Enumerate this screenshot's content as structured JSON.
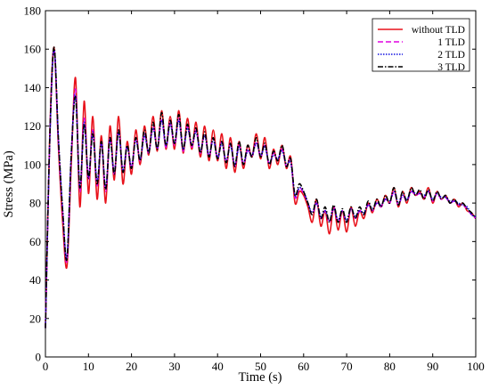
{
  "chart_data": {
    "type": "line",
    "xlabel": "Time (s)",
    "ylabel": "Stress (MPa)",
    "xlim": [
      0,
      100
    ],
    "ylim": [
      0,
      180
    ],
    "xticks": [
      0,
      10,
      20,
      30,
      40,
      50,
      60,
      70,
      80,
      90,
      100
    ],
    "yticks": [
      0,
      20,
      40,
      60,
      80,
      100,
      120,
      140,
      160,
      180
    ],
    "grid": false,
    "legend_position": "top-right",
    "series": [
      {
        "name": "without TLD",
        "color": "#e8121b",
        "dash": "solid",
        "x": [
          0,
          1,
          2,
          3,
          4,
          5,
          6,
          7,
          8,
          9,
          10,
          11,
          12,
          13,
          14,
          15,
          16,
          17,
          18,
          19,
          20,
          21,
          22,
          23,
          24,
          25,
          26,
          27,
          28,
          29,
          30,
          31,
          32,
          33,
          34,
          35,
          36,
          37,
          38,
          39,
          40,
          41,
          42,
          43,
          44,
          45,
          46,
          47,
          48,
          49,
          50,
          51,
          52,
          53,
          54,
          55,
          56,
          57,
          58,
          59,
          60,
          61,
          62,
          63,
          64,
          65,
          66,
          67,
          68,
          69,
          70,
          71,
          72,
          73,
          74,
          75,
          76,
          77,
          78,
          79,
          80,
          81,
          82,
          83,
          84,
          85,
          86,
          87,
          88,
          89,
          90,
          91,
          92,
          93,
          94,
          95,
          96,
          97,
          98,
          99,
          100
        ],
        "values": [
          15,
          115,
          161,
          110,
          70,
          47,
          100,
          145,
          78,
          133,
          85,
          125,
          82,
          115,
          80,
          120,
          92,
          125,
          90,
          112,
          95,
          118,
          100,
          120,
          105,
          125,
          107,
          128,
          108,
          125,
          108,
          128,
          106,
          124,
          108,
          122,
          104,
          120,
          102,
          118,
          102,
          116,
          98,
          114,
          96,
          112,
          98,
          110,
          104,
          116,
          103,
          114,
          98,
          108,
          100,
          110,
          98,
          104,
          80,
          86,
          84,
          78,
          70,
          82,
          68,
          76,
          64,
          78,
          66,
          76,
          65,
          78,
          68,
          76,
          72,
          80,
          75,
          82,
          78,
          84,
          80,
          88,
          78,
          86,
          80,
          88,
          84,
          86,
          82,
          88,
          80,
          86,
          82,
          84,
          80,
          82,
          78,
          80,
          76,
          75,
          72
        ]
      },
      {
        "name": "1 TLD",
        "color": "#e000e0",
        "dash": "dashed",
        "x": [
          0,
          1,
          2,
          3,
          4,
          5,
          6,
          7,
          8,
          9,
          10,
          11,
          12,
          13,
          14,
          15,
          16,
          17,
          18,
          19,
          20,
          21,
          22,
          23,
          24,
          25,
          26,
          27,
          28,
          29,
          30,
          31,
          32,
          33,
          34,
          35,
          36,
          37,
          38,
          39,
          40,
          41,
          42,
          43,
          44,
          45,
          46,
          47,
          48,
          49,
          50,
          51,
          52,
          53,
          54,
          55,
          56,
          57,
          58,
          59,
          60,
          61,
          62,
          63,
          64,
          65,
          66,
          67,
          68,
          69,
          70,
          71,
          72,
          73,
          74,
          75,
          76,
          77,
          78,
          79,
          80,
          81,
          82,
          83,
          84,
          85,
          86,
          87,
          88,
          89,
          90,
          91,
          92,
          93,
          94,
          95,
          96,
          97,
          98,
          99,
          100
        ],
        "values": [
          15,
          112,
          160,
          113,
          75,
          50,
          104,
          139,
          86,
          124,
          92,
          118,
          89,
          112,
          86,
          114,
          95,
          118,
          96,
          110,
          98,
          114,
          102,
          116,
          106,
          120,
          108,
          124,
          109,
          122,
          110,
          124,
          107,
          120,
          109,
          118,
          106,
          116,
          104,
          114,
          103,
          112,
          101,
          111,
          99,
          110,
          100,
          108,
          104,
          112,
          104,
          110,
          100,
          106,
          102,
          108,
          99,
          102,
          83,
          88,
          85,
          80,
          74,
          80,
          72,
          76,
          70,
          78,
          70,
          76,
          70,
          77,
          72,
          76,
          74,
          79,
          76,
          80,
          78,
          82,
          80,
          86,
          79,
          84,
          81,
          86,
          84,
          85,
          83,
          86,
          81,
          85,
          82,
          83,
          80,
          81,
          79,
          79,
          77,
          74,
          72
        ]
      },
      {
        "name": "2 TLD",
        "color": "#1010e0",
        "dash": "dotted",
        "x": [
          0,
          1,
          2,
          3,
          4,
          5,
          6,
          7,
          8,
          9,
          10,
          11,
          12,
          13,
          14,
          15,
          16,
          17,
          18,
          19,
          20,
          21,
          22,
          23,
          24,
          25,
          26,
          27,
          28,
          29,
          30,
          31,
          32,
          33,
          34,
          35,
          36,
          37,
          38,
          39,
          40,
          41,
          42,
          43,
          44,
          45,
          46,
          47,
          48,
          49,
          50,
          51,
          52,
          53,
          54,
          55,
          56,
          57,
          58,
          59,
          60,
          61,
          62,
          63,
          64,
          65,
          66,
          67,
          68,
          69,
          70,
          71,
          72,
          73,
          74,
          75,
          76,
          77,
          78,
          79,
          80,
          81,
          82,
          83,
          84,
          85,
          86,
          87,
          88,
          89,
          90,
          91,
          92,
          93,
          94,
          95,
          96,
          97,
          98,
          99,
          100
        ],
        "values": [
          15,
          112,
          160,
          114,
          77,
          52,
          106,
          136,
          88,
          122,
          94,
          117,
          91,
          111,
          88,
          113,
          96,
          117,
          97,
          109,
          99,
          113,
          103,
          115,
          107,
          119,
          109,
          123,
          110,
          121,
          111,
          123,
          108,
          119,
          110,
          117,
          107,
          115,
          105,
          113,
          104,
          111,
          102,
          110,
          100,
          109,
          101,
          107,
          105,
          111,
          105,
          109,
          101,
          105,
          103,
          107,
          100,
          101,
          84,
          88,
          86,
          80,
          75,
          80,
          73,
          76,
          71,
          77,
          71,
          76,
          71,
          77,
          73,
          76,
          75,
          79,
          77,
          80,
          79,
          82,
          81,
          86,
          80,
          84,
          82,
          86,
          85,
          85,
          84,
          86,
          82,
          85,
          83,
          83,
          81,
          81,
          80,
          79,
          78,
          74,
          73
        ]
      },
      {
        "name": "3 TLD",
        "color": "#000000",
        "dash": "dashdot",
        "x": [
          0,
          1,
          2,
          3,
          4,
          5,
          6,
          7,
          8,
          9,
          10,
          11,
          12,
          13,
          14,
          15,
          16,
          17,
          18,
          19,
          20,
          21,
          22,
          23,
          24,
          25,
          26,
          27,
          28,
          29,
          30,
          31,
          32,
          33,
          34,
          35,
          36,
          37,
          38,
          39,
          40,
          41,
          42,
          43,
          44,
          45,
          46,
          47,
          48,
          49,
          50,
          51,
          52,
          53,
          54,
          55,
          56,
          57,
          58,
          59,
          60,
          61,
          62,
          63,
          64,
          65,
          66,
          67,
          68,
          69,
          70,
          71,
          72,
          73,
          74,
          75,
          76,
          77,
          78,
          79,
          80,
          81,
          82,
          83,
          84,
          85,
          86,
          87,
          88,
          89,
          90,
          91,
          92,
          93,
          94,
          95,
          96,
          97,
          98,
          99,
          100
        ],
        "values": [
          15,
          113,
          161,
          114,
          76,
          51,
          105,
          135,
          88,
          121,
          93,
          116,
          90,
          112,
          87,
          114,
          95,
          118,
          96,
          110,
          98,
          114,
          102,
          118,
          106,
          122,
          108,
          127,
          110,
          123,
          111,
          126,
          108,
          121,
          110,
          119,
          106,
          117,
          104,
          114,
          103,
          112,
          101,
          111,
          99,
          112,
          100,
          110,
          104,
          114,
          104,
          111,
          100,
          107,
          102,
          110,
          99,
          103,
          84,
          90,
          86,
          80,
          74,
          82,
          72,
          78,
          70,
          79,
          70,
          77,
          70,
          78,
          72,
          78,
          74,
          81,
          76,
          82,
          78,
          84,
          80,
          88,
          79,
          86,
          81,
          88,
          84,
          87,
          82,
          87,
          81,
          86,
          82,
          84,
          80,
          82,
          79,
          80,
          77,
          75,
          72
        ]
      }
    ]
  }
}
